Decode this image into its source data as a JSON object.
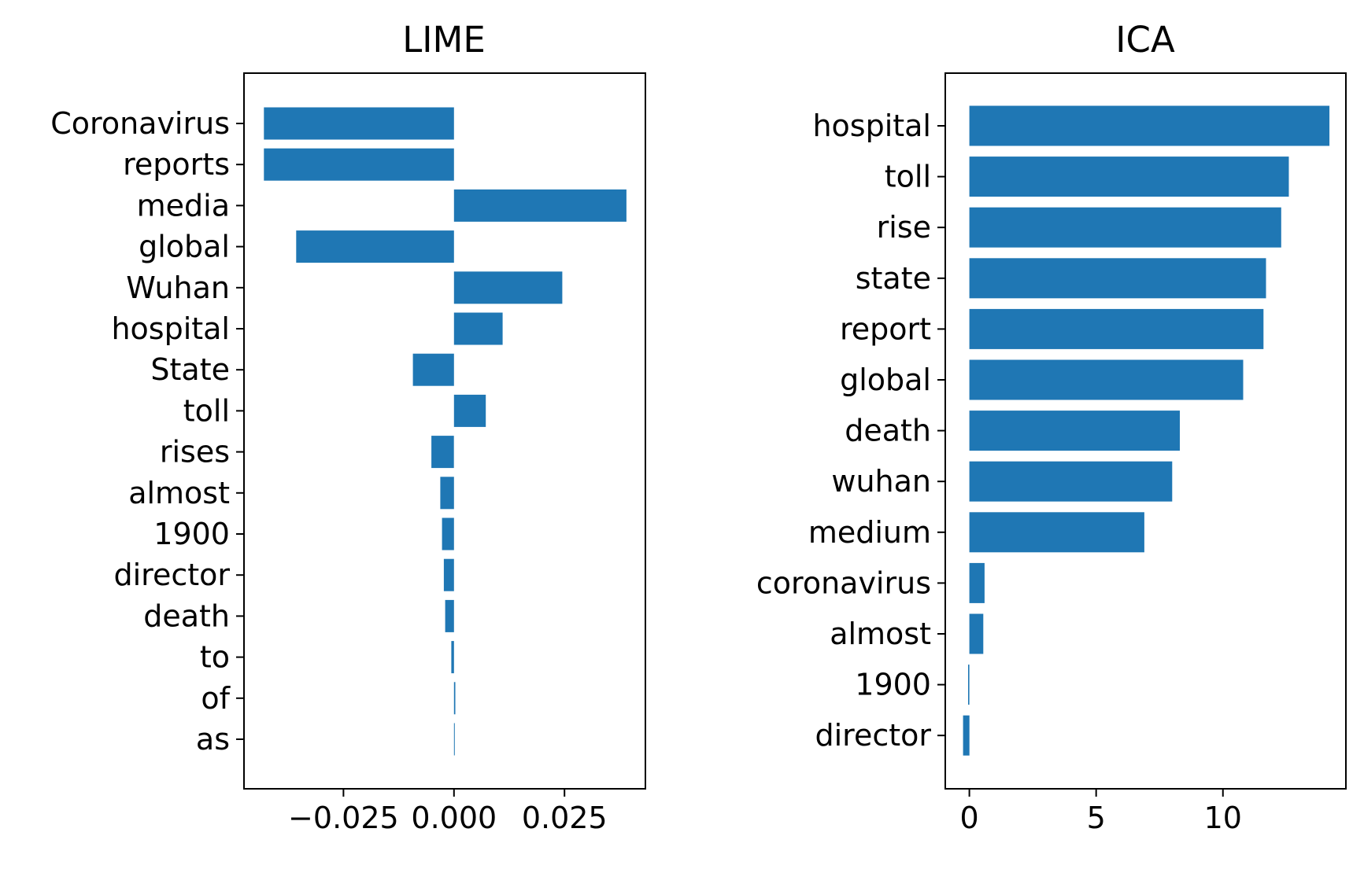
{
  "bar_color": "#1f77b4",
  "chart_data": [
    {
      "type": "bar",
      "orientation": "horizontal",
      "title": "LIME",
      "xlabel": "",
      "ylabel": "",
      "xlim": [
        -0.0475,
        0.0433
      ],
      "grid": false,
      "categories": [
        "Coronavirus",
        "reports",
        "media",
        "global",
        "Wuhan",
        "hospital",
        "State",
        "toll",
        "rises",
        "almost",
        "1900",
        "director",
        "death",
        "to",
        "of",
        "as"
      ],
      "values": [
        -0.043,
        -0.043,
        0.039,
        -0.0357,
        0.0245,
        0.011,
        -0.0093,
        0.0072,
        -0.0051,
        -0.0031,
        -0.0027,
        -0.0023,
        -0.002,
        -0.0006,
        0.0003,
        0.0001
      ],
      "xticks": [
        -0.025,
        0.0,
        0.025
      ],
      "xtick_labels": [
        "−0.025",
        "0.000",
        "0.025"
      ]
    },
    {
      "type": "bar",
      "orientation": "horizontal",
      "title": "ICA",
      "xlabel": "",
      "ylabel": "",
      "xlim": [
        -0.95,
        14.85
      ],
      "grid": false,
      "categories": [
        "hospital",
        "toll",
        "rise",
        "state",
        "report",
        "global",
        "death",
        "wuhan",
        "medium",
        "coronavirus",
        "almost",
        "1900",
        "director"
      ],
      "values": [
        14.2,
        12.6,
        12.3,
        11.7,
        11.6,
        10.8,
        8.3,
        8.0,
        6.9,
        0.6,
        0.55,
        -0.05,
        -0.25
      ],
      "xticks": [
        0,
        5,
        10
      ],
      "xtick_labels": [
        "0",
        "5",
        "10"
      ]
    }
  ]
}
